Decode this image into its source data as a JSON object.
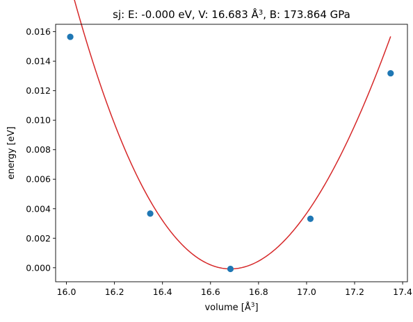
{
  "chart_data": {
    "type": "line",
    "title_prefix": "sj: E: -0.000 eV, V: 16.683 Å",
    "title_sup": "3",
    "title_suffix": ", B: 173.864 GPa",
    "xlabel_prefix": "volume [Å",
    "xlabel_sup": "3",
    "xlabel_suffix": "]",
    "ylabel": "energy [eV]",
    "xlim": [
      15.955,
      17.42
    ],
    "ylim": [
      -0.00095,
      0.0165
    ],
    "x_ticks": [
      16.0,
      16.2,
      16.4,
      16.6,
      16.8,
      17.0,
      17.2,
      17.4
    ],
    "x_tick_labels": [
      "16.0",
      "16.2",
      "16.4",
      "16.6",
      "16.8",
      "17.0",
      "17.2",
      "17.4"
    ],
    "y_ticks": [
      0.0,
      0.002,
      0.004,
      0.006,
      0.008,
      0.01,
      0.012,
      0.014,
      0.016
    ],
    "y_tick_labels": [
      "0.000",
      "0.002",
      "0.004",
      "0.006",
      "0.008",
      "0.010",
      "0.012",
      "0.014",
      "0.016"
    ],
    "grid": false,
    "series": [
      {
        "kind": "scatter",
        "color": "#1f77b4",
        "x": [
          16.016,
          16.349,
          16.683,
          17.016,
          17.35
        ],
        "y": [
          0.01565,
          0.00367,
          -8e-05,
          0.00332,
          0.01318
        ]
      },
      {
        "kind": "fit",
        "color": "#d62728",
        "x0": 16.683,
        "e0": -8e-05,
        "curvature": 0.03935,
        "asymmetry": -0.15,
        "x_range": [
          16.016,
          17.35
        ]
      }
    ]
  }
}
